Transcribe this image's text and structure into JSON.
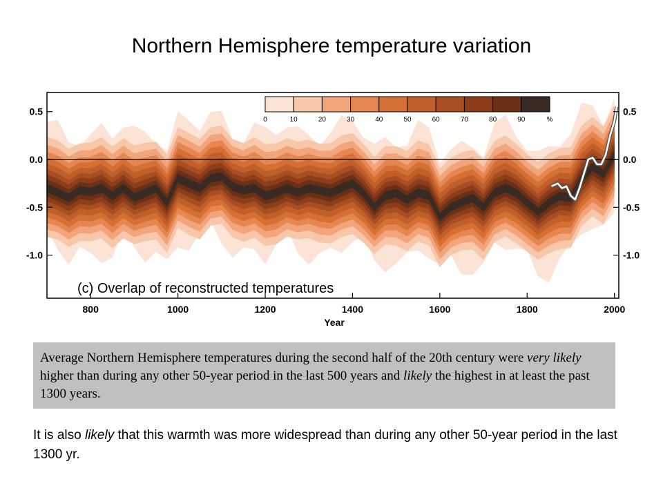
{
  "slide": {
    "title": "Northern Hemisphere temperature variation"
  },
  "quote": {
    "part1": "Average Northern Hemisphere temperatures during the second half of the 20th century were ",
    "em1": "very likely",
    "part2": " higher than during any other 50-year period in the last 500 years and ",
    "em2": "likely",
    "part3": " the highest in at least the past 1300 years."
  },
  "note": {
    "part1": "It is also ",
    "em1": "likely",
    "part2": " that this warmth was more widespread than during any other 50-year period in the last 1300 yr."
  },
  "chart_data": {
    "type": "area",
    "title": "",
    "panel_label": "(c) Overlap of reconstructed temperatures",
    "xlabel": "Year",
    "ylabel": "",
    "xlim": [
      700,
      2010
    ],
    "ylim": [
      -1.45,
      0.7
    ],
    "x_ticks": [
      800,
      1000,
      1200,
      1400,
      1600,
      1800,
      2000
    ],
    "y_ticks": [
      0.5,
      0.0,
      -0.5,
      -1.0
    ],
    "y_tick_labels": [
      "0.5",
      "0.0",
      "-0.5",
      "-1.0"
    ],
    "zero_line": 0.0,
    "colorbar": {
      "labels": [
        "0",
        "10",
        "20",
        "30",
        "40",
        "50",
        "60",
        "70",
        "80",
        "90",
        "%"
      ],
      "colors": [
        "#fbe3d6",
        "#f8c6a9",
        "#f2a47a",
        "#e68651",
        "#d56f35",
        "#c05f2a",
        "#a84e22",
        "#8c3e1b",
        "#6b3016",
        "#3a2a24"
      ]
    },
    "series": [
      {
        "x": [
          700,
          725,
          750,
          775,
          800,
          825,
          850,
          875,
          900,
          925,
          950,
          975,
          1000,
          1025,
          1050,
          1075,
          1100,
          1125,
          1150,
          1175,
          1200,
          1225,
          1250,
          1275,
          1300,
          1325,
          1350,
          1375,
          1400,
          1425,
          1450,
          1475,
          1500,
          1525,
          1550,
          1575,
          1600,
          1625,
          1650,
          1675,
          1700,
          1725,
          1750,
          1775,
          1800,
          1825,
          1850,
          1875,
          1900,
          1925,
          1950,
          1975,
          2000
        ],
        "values": [
          -0.3,
          -0.35,
          -0.4,
          -0.32,
          -0.34,
          -0.3,
          -0.38,
          -0.3,
          -0.4,
          -0.35,
          -0.3,
          -0.45,
          -0.2,
          -0.25,
          -0.3,
          -0.2,
          -0.18,
          -0.28,
          -0.32,
          -0.3,
          -0.38,
          -0.35,
          -0.3,
          -0.35,
          -0.3,
          -0.32,
          -0.35,
          -0.3,
          -0.25,
          -0.35,
          -0.5,
          -0.38,
          -0.35,
          -0.42,
          -0.35,
          -0.38,
          -0.6,
          -0.5,
          -0.45,
          -0.4,
          -0.5,
          -0.35,
          -0.3,
          -0.35,
          -0.45,
          -0.55,
          -0.45,
          -0.38,
          -0.4,
          -0.2,
          -0.08,
          -0.15,
          0.05
        ]
      },
      {
        "x": [
          1856,
          1870,
          1880,
          1890,
          1900,
          1910,
          1920,
          1930,
          1940,
          1950,
          1960,
          1970,
          1980,
          1990,
          2000,
          2005
        ],
        "values": [
          -0.28,
          -0.25,
          -0.3,
          -0.28,
          -0.38,
          -0.42,
          -0.3,
          -0.15,
          0.0,
          0.02,
          -0.05,
          -0.05,
          0.05,
          0.25,
          0.4,
          0.55
        ]
      }
    ]
  }
}
